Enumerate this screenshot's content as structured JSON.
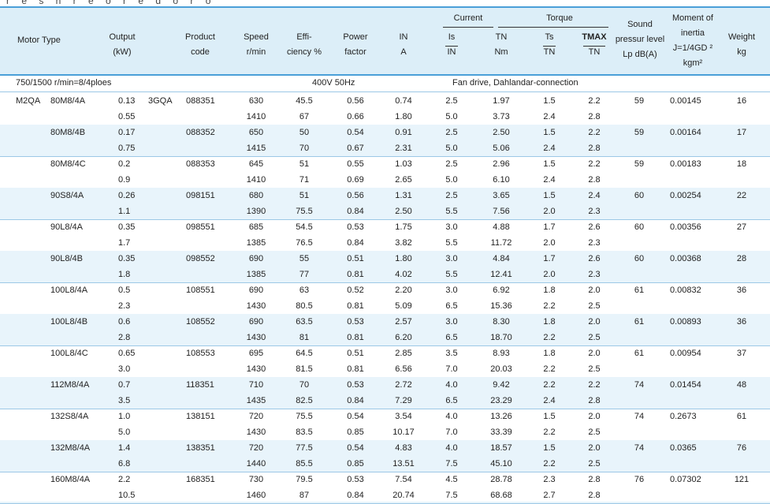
{
  "top_fragment": "r e s n r e o r e d o r o",
  "header": {
    "motor_type": "Motor Type",
    "output": [
      "Output",
      "(kW)"
    ],
    "product_code": [
      "Product",
      "code"
    ],
    "speed": [
      "Speed",
      "r/min"
    ],
    "efficiency": [
      "Effi-",
      "ciency %"
    ],
    "power_factor": [
      "Power",
      "factor"
    ],
    "in": [
      "IN",
      "A"
    ],
    "current_group": "Current",
    "torque_group": "Torque",
    "is_in": [
      "Is",
      "IN"
    ],
    "tn": [
      "TN",
      "Nm"
    ],
    "ts_tn": [
      "Ts",
      "TN"
    ],
    "tmax_tn": [
      "TMAX",
      "TN"
    ],
    "sound": [
      "Sound",
      "pressur level",
      "Lp dB(A)"
    ],
    "inertia": [
      "Moment of",
      "inertia",
      "J=1/4GD ²",
      "kgm²"
    ],
    "weight": [
      "Weight",
      "kg"
    ]
  },
  "condition": {
    "speeds": "750/1500 r/min=8/4ploes",
    "voltage": "400V 50Hz",
    "connection": "Fan  drive, Dahlandar-connection"
  },
  "rows": [
    {
      "series": "M2QA",
      "type": "80M8/4A",
      "out": [
        "0.13",
        "0.55"
      ],
      "prefix": "3GQA",
      "code": "088351",
      "speed": [
        "630",
        "1410"
      ],
      "eff": [
        "45.5",
        "67"
      ],
      "pf": [
        "0.56",
        "0.66"
      ],
      "in": [
        "0.74",
        "1.80"
      ],
      "is": [
        "2.5",
        "5.0"
      ],
      "tn": [
        "1.97",
        "3.73"
      ],
      "ts": [
        "1.5",
        "2.4"
      ],
      "tmax": [
        "2.2",
        "2.8"
      ],
      "lp": "59",
      "j": "0.00145",
      "kg": "16"
    },
    {
      "series": "",
      "type": "80M8/4B",
      "out": [
        "0.17",
        "0.75"
      ],
      "prefix": "",
      "code": "088352",
      "speed": [
        "650",
        "1415"
      ],
      "eff": [
        "50",
        "70"
      ],
      "pf": [
        "0.54",
        "0.67"
      ],
      "in": [
        "0.91",
        "2.31"
      ],
      "is": [
        "2.5",
        "5.0"
      ],
      "tn": [
        "2.50",
        "5.06"
      ],
      "ts": [
        "1.5",
        "2.4"
      ],
      "tmax": [
        "2.2",
        "2.8"
      ],
      "lp": "59",
      "j": "0.00164",
      "kg": "17"
    },
    {
      "series": "",
      "type": "80M8/4C",
      "out": [
        "0.2",
        "0.9"
      ],
      "prefix": "",
      "code": "088353",
      "speed": [
        "645",
        "1410"
      ],
      "eff": [
        "51",
        "71"
      ],
      "pf": [
        "0.55",
        "0.69"
      ],
      "in": [
        "1.03",
        "2.65"
      ],
      "is": [
        "2.5",
        "5.0"
      ],
      "tn": [
        "2.96",
        "6.10"
      ],
      "ts": [
        "1.5",
        "2.4"
      ],
      "tmax": [
        "2.2",
        "2.8"
      ],
      "lp": "59",
      "j": "0.00183",
      "kg": "18"
    },
    {
      "series": "",
      "type": "90S8/4A",
      "out": [
        "0.26",
        "1.1"
      ],
      "prefix": "",
      "code": "098151",
      "speed": [
        "680",
        "1390"
      ],
      "eff": [
        "51",
        "75.5"
      ],
      "pf": [
        "0.56",
        "0.84"
      ],
      "in": [
        "1.31",
        "2.50"
      ],
      "is": [
        "2.5",
        "5.5"
      ],
      "tn": [
        "3.65",
        "7.56"
      ],
      "ts": [
        "1.5",
        "2.0"
      ],
      "tmax": [
        "2.4",
        "2.3"
      ],
      "lp": "60",
      "j": "0.00254",
      "kg": "22"
    },
    {
      "series": "",
      "type": "90L8/4A",
      "out": [
        "0.35",
        "1.7"
      ],
      "prefix": "",
      "code": "098551",
      "speed": [
        "685",
        "1385"
      ],
      "eff": [
        "54.5",
        "76.5"
      ],
      "pf": [
        "0.53",
        "0.84"
      ],
      "in": [
        "1.75",
        "3.82"
      ],
      "is": [
        "3.0",
        "5.5"
      ],
      "tn": [
        "4.88",
        "11.72"
      ],
      "ts": [
        "1.7",
        "2.0"
      ],
      "tmax": [
        "2.6",
        "2.3"
      ],
      "lp": "60",
      "j": "0.00356",
      "kg": "27"
    },
    {
      "series": "",
      "type": "90L8/4B",
      "out": [
        "0.35",
        "1.8"
      ],
      "prefix": "",
      "code": "098552",
      "speed": [
        "690",
        "1385"
      ],
      "eff": [
        "55",
        "77"
      ],
      "pf": [
        "0.51",
        "0.81"
      ],
      "in": [
        "1.80",
        "4.02"
      ],
      "is": [
        "3.0",
        "5.5"
      ],
      "tn": [
        "4.84",
        "12.41"
      ],
      "ts": [
        "1.7",
        "2.0"
      ],
      "tmax": [
        "2.6",
        "2.3"
      ],
      "lp": "60",
      "j": "0.00368",
      "kg": "28"
    },
    {
      "series": "",
      "type": "100L8/4A",
      "out": [
        "0.5",
        "2.3"
      ],
      "prefix": "",
      "code": "108551",
      "speed": [
        "690",
        "1430"
      ],
      "eff": [
        "63",
        "80.5"
      ],
      "pf": [
        "0.52",
        "0.81"
      ],
      "in": [
        "2.20",
        "5.09"
      ],
      "is": [
        "3.0",
        "6.5"
      ],
      "tn": [
        "6.92",
        "15.36"
      ],
      "ts": [
        "1.8",
        "2.2"
      ],
      "tmax": [
        "2.0",
        "2.5"
      ],
      "lp": "61",
      "j": "0.00832",
      "kg": "36"
    },
    {
      "series": "",
      "type": "100L8/4B",
      "out": [
        "0.6",
        "2.8"
      ],
      "prefix": "",
      "code": "108552",
      "speed": [
        "690",
        "1430"
      ],
      "eff": [
        "63.5",
        "81"
      ],
      "pf": [
        "0.53",
        "0.81"
      ],
      "in": [
        "2.57",
        "6.20"
      ],
      "is": [
        "3.0",
        "6.5"
      ],
      "tn": [
        "8.30",
        "18.70"
      ],
      "ts": [
        "1.8",
        "2.2"
      ],
      "tmax": [
        "2.0",
        "2.5"
      ],
      "lp": "61",
      "j": "0.00893",
      "kg": "36"
    },
    {
      "series": "",
      "type": "100L8/4C",
      "out": [
        "0.65",
        "3.0"
      ],
      "prefix": "",
      "code": "108553",
      "speed": [
        "695",
        "1430"
      ],
      "eff": [
        "64.5",
        "81.5"
      ],
      "pf": [
        "0.51",
        "0.81"
      ],
      "in": [
        "2.85",
        "6.56"
      ],
      "is": [
        "3.5",
        "7.0"
      ],
      "tn": [
        "8.93",
        "20.03"
      ],
      "ts": [
        "1.8",
        "2.2"
      ],
      "tmax": [
        "2.0",
        "2.5"
      ],
      "lp": "61",
      "j": "0.00954",
      "kg": "37"
    },
    {
      "series": "",
      "type": "112M8/4A",
      "out": [
        "0.7",
        "3.5"
      ],
      "prefix": "",
      "code": "118351",
      "speed": [
        "710",
        "1435"
      ],
      "eff": [
        "70",
        "82.5"
      ],
      "pf": [
        "0.53",
        "0.84"
      ],
      "in": [
        "2.72",
        "7.29"
      ],
      "is": [
        "4.0",
        "6.5"
      ],
      "tn": [
        "9.42",
        "23.29"
      ],
      "ts": [
        "2.2",
        "2.4"
      ],
      "tmax": [
        "2.2",
        "2.8"
      ],
      "lp": "74",
      "j": "0.01454",
      "kg": "48"
    },
    {
      "series": "",
      "type": "132S8/4A",
      "out": [
        "1.0",
        "5.0"
      ],
      "prefix": "",
      "code": "138151",
      "speed": [
        "720",
        "1430"
      ],
      "eff": [
        "75.5",
        "83.5"
      ],
      "pf": [
        "0.54",
        "0.85"
      ],
      "in": [
        "3.54",
        "10.17"
      ],
      "is": [
        "4.0",
        "7.0"
      ],
      "tn": [
        "13.26",
        "33.39"
      ],
      "ts": [
        "1.5",
        "2.2"
      ],
      "tmax": [
        "2.0",
        "2.5"
      ],
      "lp": "74",
      "j": "0.2673",
      "kg": "61"
    },
    {
      "series": "",
      "type": "132M8/4A",
      "out": [
        "1.4",
        "6.8"
      ],
      "prefix": "",
      "code": "138351",
      "speed": [
        "720",
        "1440"
      ],
      "eff": [
        "77.5",
        "85.5"
      ],
      "pf": [
        "0.54",
        "0.85"
      ],
      "in": [
        "4.83",
        "13.51"
      ],
      "is": [
        "4.0",
        "7.5"
      ],
      "tn": [
        "18.57",
        "45.10"
      ],
      "ts": [
        "1.5",
        "2.2"
      ],
      "tmax": [
        "2.0",
        "2.5"
      ],
      "lp": "74",
      "j": "0.0365",
      "kg": "76"
    },
    {
      "series": "",
      "type": "160M8/4A",
      "out": [
        "2.2",
        "10.5"
      ],
      "prefix": "",
      "code": "168351",
      "speed": [
        "730",
        "1460"
      ],
      "eff": [
        "79.5",
        "87"
      ],
      "pf": [
        "0.53",
        "0.84"
      ],
      "in": [
        "7.54",
        "20.74"
      ],
      "is": [
        "4.5",
        "7.5"
      ],
      "tn": [
        "28.78",
        "68.68"
      ],
      "ts": [
        "2.3",
        "2.7"
      ],
      "tmax": [
        "2.8",
        "2.8"
      ],
      "lp": "76",
      "j": "0.07302",
      "kg": "121"
    }
  ]
}
